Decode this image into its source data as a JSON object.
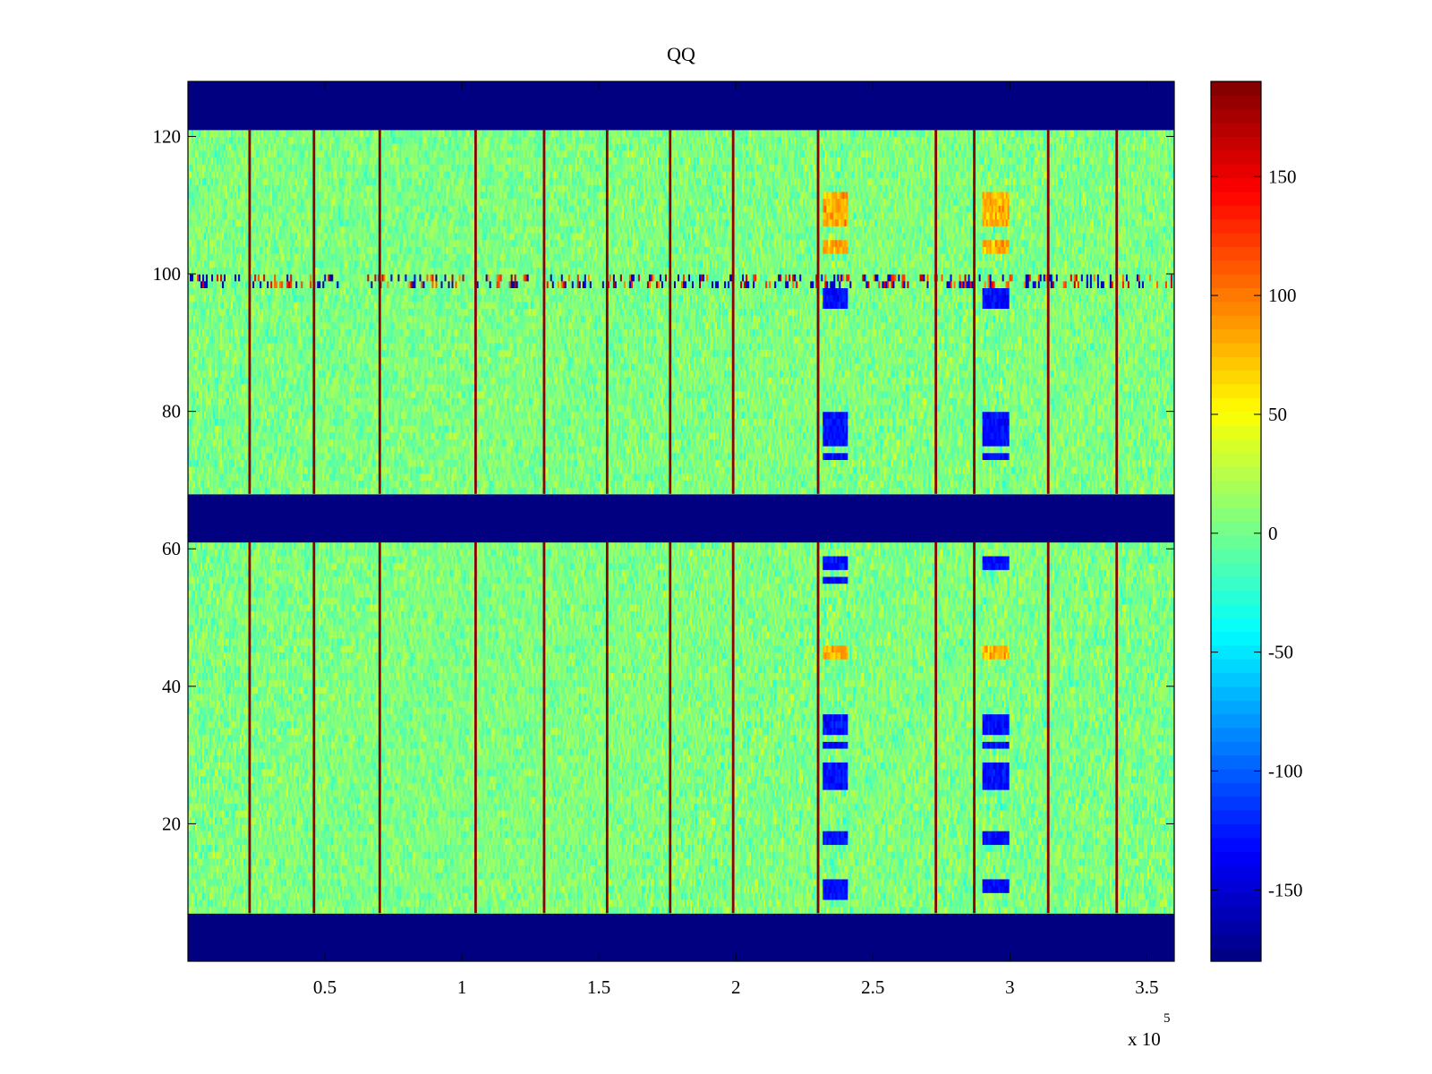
{
  "chart_data": {
    "type": "heatmap",
    "title": "QQ",
    "colormap": "jet",
    "x": {
      "range": [
        0,
        360000
      ],
      "ticks": [
        50000,
        100000,
        150000,
        200000,
        250000,
        300000,
        350000
      ],
      "tick_labels": [
        "0.5",
        "1",
        "1.5",
        "2",
        "2.5",
        "3",
        "3.5"
      ],
      "exponent_label": "x 10",
      "exponent_power": "5"
    },
    "y": {
      "range": [
        0,
        128
      ],
      "ticks": [
        20,
        40,
        60,
        80,
        100,
        120
      ],
      "tick_labels": [
        "20",
        "40",
        "60",
        "80",
        "100",
        "120"
      ]
    },
    "colorbar": {
      "range": [
        -180,
        190
      ],
      "ticks": [
        -150,
        -100,
        -50,
        0,
        50,
        100,
        150
      ],
      "tick_labels": [
        "-150",
        "-100",
        "-50",
        "0",
        "50",
        "100",
        "150"
      ]
    },
    "masked_row_bands": [
      [
        0,
        7
      ],
      [
        61,
        68
      ],
      [
        121,
        128
      ]
    ],
    "masked_value": -180,
    "background_noise_mean": 5,
    "background_noise_spread": 40,
    "vertical_spike_columns": [
      22500,
      46000,
      70000,
      105000,
      130000,
      153000,
      176000,
      199000,
      230000,
      273000,
      287000,
      314000,
      339000
    ],
    "spike_value": 185,
    "artifact_row": 100,
    "anomaly_columns": [
      {
        "x_range": [
          232000,
          241000
        ],
        "blue_rows": [
          [
            9,
            12
          ],
          [
            17,
            19
          ],
          [
            25,
            29
          ],
          [
            31,
            32
          ],
          [
            33,
            36
          ],
          [
            55,
            56
          ],
          [
            57,
            59
          ],
          [
            73,
            74
          ],
          [
            75,
            80
          ],
          [
            95,
            98
          ]
        ],
        "warm_rows": [
          [
            44,
            46
          ],
          [
            103,
            105
          ],
          [
            107,
            112
          ]
        ]
      },
      {
        "x_range": [
          290000,
          300000
        ],
        "blue_rows": [
          [
            10,
            12
          ],
          [
            17,
            19
          ],
          [
            25,
            29
          ],
          [
            31,
            32
          ],
          [
            33,
            36
          ],
          [
            57,
            59
          ],
          [
            73,
            74
          ],
          [
            75,
            80
          ],
          [
            95,
            98
          ]
        ],
        "warm_rows": [
          [
            44,
            46
          ],
          [
            103,
            105
          ],
          [
            107,
            112
          ]
        ]
      }
    ]
  }
}
